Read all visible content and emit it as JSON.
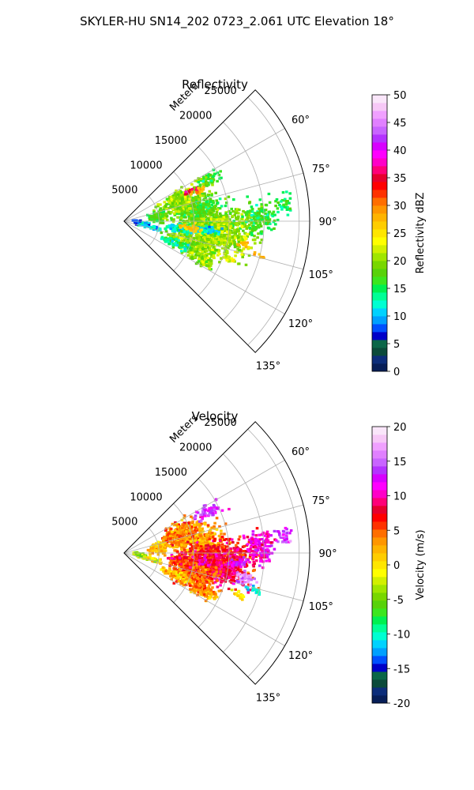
{
  "suptitle": "SKYLER-HU  SN14_202  0723_2.061 UTC Elevation 18°",
  "chart_data": [
    {
      "type": "heatmap",
      "projection": "polar-sector",
      "title": "Reflectivity",
      "radial_label": "Meters",
      "r_ticks": [
        5000,
        10000,
        15000,
        20000,
        25000
      ],
      "r_max": 26500,
      "theta_range_deg": [
        45,
        135
      ],
      "theta_ticks_deg": [
        60,
        75,
        90,
        105,
        120,
        135
      ],
      "grid": true,
      "colorbar": {
        "label": "Reflectivity dBZ",
        "range": [
          0,
          50
        ],
        "ticks": [
          0,
          5,
          10,
          15,
          20,
          25,
          30,
          35,
          40,
          45,
          50
        ],
        "colors": [
          "#071e58",
          "#0c2d7a",
          "#0b4a3a",
          "#0b6648",
          "#0000c8",
          "#0050ff",
          "#00a0ff",
          "#00d2ff",
          "#00ffd2",
          "#00ff96",
          "#00f050",
          "#3ce61e",
          "#58d20a",
          "#78d700",
          "#a0e600",
          "#d2f000",
          "#ffff00",
          "#ffe600",
          "#ffcd00",
          "#ffb400",
          "#ff9600",
          "#ff6e00",
          "#ff3200",
          "#ff0000",
          "#e6002d",
          "#ff0078",
          "#ff00c8",
          "#ff00ff",
          "#d700ff",
          "#b432ff",
          "#c864ff",
          "#e080ff",
          "#f0a0ff",
          "#f7c8f7",
          "#fae6fa"
        ]
      },
      "echo_regions": [
        {
          "az": 80,
          "r": 10500,
          "da": 18,
          "dr": 6500,
          "value": 17
        },
        {
          "az": 92,
          "r": 13500,
          "da": 16,
          "dr": 9000,
          "value": 19
        },
        {
          "az": 100,
          "r": 14000,
          "da": 14,
          "dr": 8000,
          "value": 21
        },
        {
          "az": 108,
          "r": 10500,
          "da": 16,
          "dr": 6000,
          "value": 20
        },
        {
          "az": 113,
          "r": 8000,
          "da": 6,
          "dr": 4000,
          "value": 14
        },
        {
          "az": 70,
          "r": 8500,
          "da": 16,
          "dr": 5000,
          "value": 20
        },
        {
          "az": 88,
          "r": 19500,
          "da": 12,
          "dr": 3500,
          "value": 16
        },
        {
          "az": 84,
          "r": 23000,
          "da": 6,
          "dr": 1800,
          "value": 15
        },
        {
          "az": 64,
          "r": 13500,
          "da": 6,
          "dr": 3500,
          "value": 17
        },
        {
          "az": 82,
          "r": 5000,
          "da": 16,
          "dr": 2200,
          "value": 18
        },
        {
          "az": 116,
          "r": 12500,
          "da": 7,
          "dr": 3500,
          "value": 20
        },
        {
          "az": 98,
          "r": 8000,
          "da": 8,
          "dr": 3000,
          "value": 13
        },
        {
          "az": 99,
          "r": 2500,
          "da": 12,
          "dr": 1500,
          "value": 11
        },
        {
          "az": 92,
          "r": 1800,
          "da": 10,
          "dr": 900,
          "value": 8
        },
        {
          "az": 103,
          "r": 4500,
          "da": 6,
          "dr": 1800,
          "value": 11
        },
        {
          "az": 96,
          "r": 12000,
          "da": 5,
          "dr": 3000,
          "value": 12
        },
        {
          "az": 66,
          "r": 10500,
          "da": 3,
          "dr": 2000,
          "value": 36
        },
        {
          "az": 68,
          "r": 11500,
          "da": 3,
          "dr": 1800,
          "value": 28
        },
        {
          "az": 96,
          "r": 9500,
          "da": 4,
          "dr": 2500,
          "value": 27
        },
        {
          "az": 101,
          "r": 17500,
          "da": 3,
          "dr": 1500,
          "value": 27
        },
        {
          "az": 104,
          "r": 20000,
          "da": 2,
          "dr": 1200,
          "value": 28
        },
        {
          "az": 90,
          "r": 14000,
          "da": 4,
          "dr": 2500,
          "value": 22
        },
        {
          "az": 110,
          "r": 15500,
          "da": 3,
          "dr": 2000,
          "value": 22
        }
      ]
    },
    {
      "type": "heatmap",
      "projection": "polar-sector",
      "title": "Velocity",
      "radial_label": "Meters",
      "r_ticks": [
        5000,
        10000,
        15000,
        20000,
        25000
      ],
      "r_max": 26500,
      "theta_range_deg": [
        45,
        135
      ],
      "theta_ticks_deg": [
        60,
        75,
        90,
        105,
        120,
        135
      ],
      "grid": true,
      "colorbar": {
        "label": "Velocity (m/s)",
        "range": [
          -20,
          20
        ],
        "ticks": [
          -20,
          -15,
          -10,
          -5,
          0,
          5,
          10,
          15,
          20
        ],
        "colors": [
          "#071e58",
          "#0c2d7a",
          "#0b4a3a",
          "#0b6648",
          "#0000c8",
          "#0050ff",
          "#00a0ff",
          "#00d2ff",
          "#00ffd2",
          "#00ff96",
          "#00f050",
          "#3ce61e",
          "#58d20a",
          "#78d700",
          "#a0e600",
          "#d2f000",
          "#ffff00",
          "#ffe600",
          "#ffcd00",
          "#ffb400",
          "#ff9600",
          "#ff6e00",
          "#ff3200",
          "#ff0000",
          "#e6002d",
          "#ff0078",
          "#ff00c8",
          "#ff00ff",
          "#d700ff",
          "#b432ff",
          "#c864ff",
          "#e080ff",
          "#f0a0ff",
          "#f7c8f7",
          "#fae6fa"
        ]
      },
      "echo_regions": [
        {
          "az": 80,
          "r": 10500,
          "da": 18,
          "dr": 6500,
          "value": 3
        },
        {
          "az": 92,
          "r": 13500,
          "da": 16,
          "dr": 9000,
          "value": 7
        },
        {
          "az": 100,
          "r": 14000,
          "da": 14,
          "dr": 8000,
          "value": 8
        },
        {
          "az": 108,
          "r": 10500,
          "da": 16,
          "dr": 6000,
          "value": 5
        },
        {
          "az": 113,
          "r": 8000,
          "da": 6,
          "dr": 4000,
          "value": 2
        },
        {
          "az": 70,
          "r": 8500,
          "da": 16,
          "dr": 5000,
          "value": 4
        },
        {
          "az": 88,
          "r": 19500,
          "da": 12,
          "dr": 3500,
          "value": 11
        },
        {
          "az": 84,
          "r": 23000,
          "da": 6,
          "dr": 1800,
          "value": 14
        },
        {
          "az": 64,
          "r": 13500,
          "da": 6,
          "dr": 3500,
          "value": 13
        },
        {
          "az": 82,
          "r": 5000,
          "da": 16,
          "dr": 2200,
          "value": 2
        },
        {
          "az": 116,
          "r": 12500,
          "da": 7,
          "dr": 3500,
          "value": 3
        },
        {
          "az": 98,
          "r": 8000,
          "da": 8,
          "dr": 3000,
          "value": 6
        },
        {
          "az": 99,
          "r": 2500,
          "da": 12,
          "dr": 1500,
          "value": -3
        },
        {
          "az": 92,
          "r": 1800,
          "da": 10,
          "dr": 900,
          "value": -4
        },
        {
          "az": 103,
          "r": 4500,
          "da": 6,
          "dr": 1800,
          "value": 0
        },
        {
          "az": 96,
          "r": 12000,
          "da": 5,
          "dr": 3000,
          "value": 9
        },
        {
          "az": 95,
          "r": 16500,
          "da": 4,
          "dr": 2500,
          "value": 13
        },
        {
          "az": 102,
          "r": 17500,
          "da": 5,
          "dr": 2500,
          "value": 16
        },
        {
          "az": 106,
          "r": 19500,
          "da": 3,
          "dr": 1800,
          "value": -11
        },
        {
          "az": 110,
          "r": 17500,
          "da": 3,
          "dr": 2000,
          "value": 0
        }
      ]
    }
  ]
}
